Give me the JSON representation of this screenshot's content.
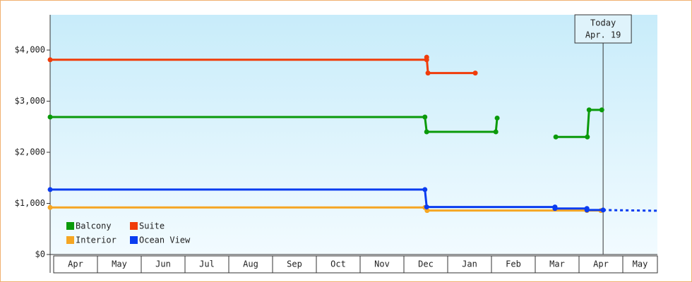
{
  "chart_data": {
    "type": "line",
    "categories": [
      "Apr",
      "May",
      "Jun",
      "Jul",
      "Aug",
      "Sep",
      "Oct",
      "Nov",
      "Dec",
      "Jan",
      "Feb",
      "Mar",
      "Apr",
      "May"
    ],
    "xlim": [
      -0.08,
      13.79
    ],
    "ylim": [
      0,
      4690
    ],
    "yticks": [
      {
        "value": 0,
        "label": "$0"
      },
      {
        "value": 1000,
        "label": "$1,000"
      },
      {
        "value": 2000,
        "label": "$2,000"
      },
      {
        "value": 3000,
        "label": "$3,000"
      },
      {
        "value": 4000,
        "label": "$4,000"
      }
    ],
    "series": [
      {
        "name": "Balcony",
        "color": "#0a9a0a",
        "x": [
          -0.08,
          8.48,
          8.52,
          10.1,
          10.13,
          null,
          11.47,
          12.19,
          12.23,
          12.52
        ],
        "values": [
          2690,
          2690,
          2400,
          2400,
          2670,
          null,
          2300,
          2300,
          2830,
          2830
        ]
      },
      {
        "name": "Suite",
        "color": "#f03c0a",
        "x": [
          -0.08,
          8.52,
          8.52,
          8.55,
          9.63
        ],
        "values": [
          3810,
          3810,
          3860,
          3550,
          3550
        ]
      },
      {
        "name": "Interior",
        "color": "#f5a623",
        "x": [
          -0.08,
          8.48,
          8.53,
          12.18,
          12.5
        ],
        "values": [
          920,
          920,
          860,
          860,
          860
        ]
      },
      {
        "name": "Ocean View",
        "color": "#0a3cf0",
        "x": [
          -0.08,
          8.48,
          8.52,
          11.45,
          11.45,
          12.18,
          12.18,
          12.55
        ],
        "values": [
          1270,
          1270,
          930,
          930,
          900,
          900,
          870,
          870
        ],
        "projection": true
      }
    ],
    "annotation": {
      "x": 12.55,
      "lines": [
        "Today",
        "Apr. 19"
      ]
    }
  }
}
